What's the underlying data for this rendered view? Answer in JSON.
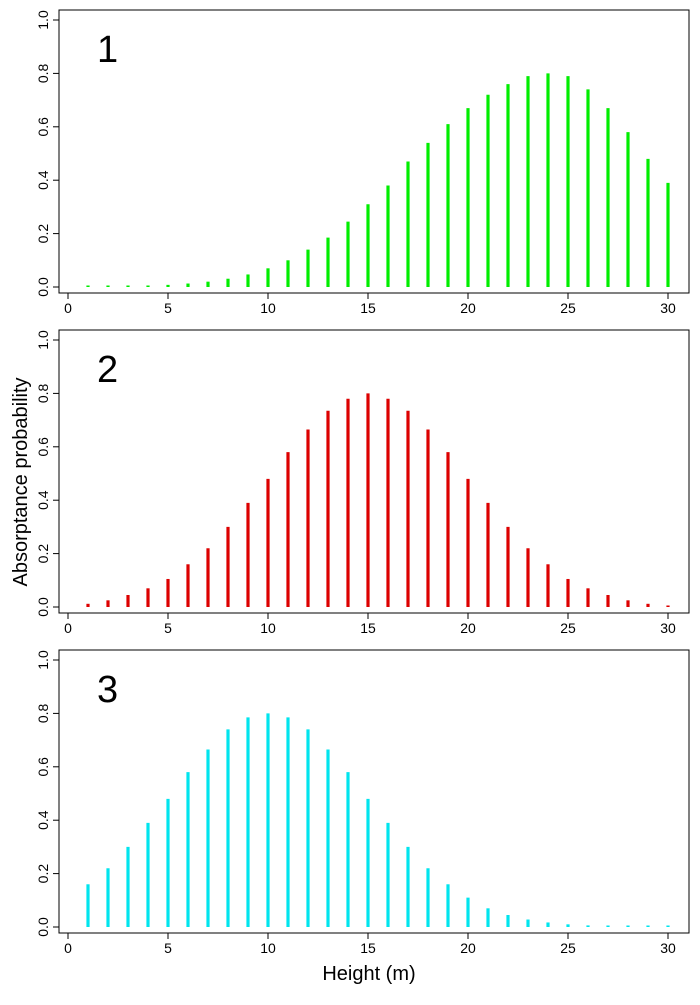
{
  "chart_data": [
    {
      "type": "bar",
      "panel_label": "1",
      "color": "#00ee00",
      "x": [
        1,
        2,
        3,
        4,
        5,
        6,
        7,
        8,
        9,
        10,
        11,
        12,
        13,
        14,
        15,
        16,
        17,
        18,
        19,
        20,
        21,
        22,
        23,
        24,
        25,
        26,
        27,
        28,
        29,
        30
      ],
      "values": [
        0.001,
        0.002,
        0.003,
        0.005,
        0.008,
        0.013,
        0.02,
        0.031,
        0.047,
        0.07,
        0.1,
        0.14,
        0.185,
        0.245,
        0.31,
        0.38,
        0.47,
        0.54,
        0.61,
        0.67,
        0.72,
        0.76,
        0.79,
        0.8,
        0.79,
        0.74,
        0.67,
        0.58,
        0.48,
        0.39
      ],
      "xlim": [
        0,
        31
      ],
      "ylim": [
        0,
        1
      ],
      "xticks": [
        "0",
        "5",
        "10",
        "15",
        "20",
        "25",
        "30"
      ],
      "yticks": [
        "0.0",
        "0.2",
        "0.4",
        "0.6",
        "0.8",
        "1.0"
      ],
      "grid": false
    },
    {
      "type": "bar",
      "panel_label": "2",
      "color": "#dd0000",
      "x": [
        1,
        2,
        3,
        4,
        5,
        6,
        7,
        8,
        9,
        10,
        11,
        12,
        13,
        14,
        15,
        16,
        17,
        18,
        19,
        20,
        21,
        22,
        23,
        24,
        25,
        26,
        27,
        28,
        29,
        30
      ],
      "values": [
        0.012,
        0.025,
        0.045,
        0.07,
        0.105,
        0.16,
        0.22,
        0.3,
        0.39,
        0.48,
        0.58,
        0.665,
        0.735,
        0.78,
        0.8,
        0.78,
        0.735,
        0.665,
        0.58,
        0.48,
        0.39,
        0.3,
        0.22,
        0.16,
        0.105,
        0.07,
        0.045,
        0.025,
        0.012,
        0.005
      ],
      "xlim": [
        0,
        31
      ],
      "ylim": [
        0,
        1
      ],
      "xticks": [
        "0",
        "5",
        "10",
        "15",
        "20",
        "25",
        "30"
      ],
      "yticks": [
        "0.0",
        "0.2",
        "0.4",
        "0.6",
        "0.8",
        "1.0"
      ],
      "grid": false
    },
    {
      "type": "bar",
      "panel_label": "3",
      "color": "#00e5ee",
      "x": [
        1,
        2,
        3,
        4,
        5,
        6,
        7,
        8,
        9,
        10,
        11,
        12,
        13,
        14,
        15,
        16,
        17,
        18,
        19,
        20,
        21,
        22,
        23,
        24,
        25,
        26,
        27,
        28,
        29,
        30
      ],
      "values": [
        0.16,
        0.22,
        0.3,
        0.39,
        0.48,
        0.58,
        0.665,
        0.74,
        0.785,
        0.8,
        0.785,
        0.74,
        0.665,
        0.58,
        0.48,
        0.39,
        0.3,
        0.22,
        0.16,
        0.11,
        0.07,
        0.045,
        0.028,
        0.017,
        0.01,
        0.006,
        0.003,
        0.002,
        0.001,
        0.001
      ],
      "xlim": [
        0,
        31
      ],
      "ylim": [
        0,
        1
      ],
      "xticks": [
        "0",
        "5",
        "10",
        "15",
        "20",
        "25",
        "30"
      ],
      "yticks": [
        "0.0",
        "0.2",
        "0.4",
        "0.6",
        "0.8",
        "1.0"
      ],
      "grid": false
    }
  ],
  "axes": {
    "xlabel": "Height (m)",
    "ylabel": "Absorptance probability"
  }
}
